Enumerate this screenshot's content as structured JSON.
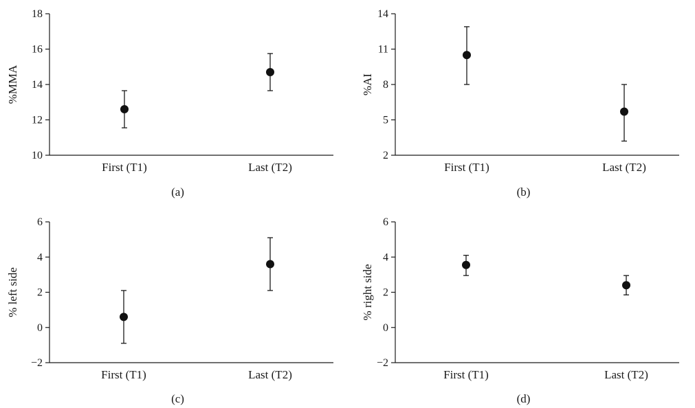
{
  "chart_data": [
    {
      "type": "scatter",
      "panel_label": "(a)",
      "ylabel": "%MMA",
      "xlabel": "",
      "categories": [
        "First (T1)",
        "Last (T2)"
      ],
      "yticks": [
        10,
        12,
        14,
        16,
        18
      ],
      "ylim": [
        10,
        18
      ],
      "series": [
        {
          "values": [
            12.6,
            14.7
          ],
          "err_low": [
            11.55,
            13.65
          ],
          "err_high": [
            13.65,
            15.75
          ]
        }
      ]
    },
    {
      "type": "scatter",
      "panel_label": "(b)",
      "ylabel": "%AI",
      "xlabel": "",
      "categories": [
        "First (T1)",
        "Last (T2)"
      ],
      "yticks": [
        2,
        5,
        8,
        11,
        14
      ],
      "ylim": [
        2,
        14
      ],
      "series": [
        {
          "values": [
            10.5,
            5.7
          ],
          "err_low": [
            8.0,
            3.2
          ],
          "err_high": [
            12.9,
            8.0
          ]
        }
      ]
    },
    {
      "type": "scatter",
      "panel_label": "(c)",
      "ylabel": "% left side",
      "xlabel": "",
      "categories": [
        "First (T1)",
        "Last (T2)"
      ],
      "yticks": [
        -2,
        0,
        2,
        4,
        6
      ],
      "ytick_labels": [
        "−2",
        "0",
        "2",
        "4",
        "6"
      ],
      "ylim": [
        -2,
        6
      ],
      "series": [
        {
          "values": [
            0.6,
            3.6
          ],
          "err_low": [
            -0.9,
            2.1
          ],
          "err_high": [
            2.1,
            5.1
          ]
        }
      ]
    },
    {
      "type": "scatter",
      "panel_label": "(d)",
      "ylabel": "% right side",
      "xlabel": "",
      "categories": [
        "First (T1)",
        "Last (T2)"
      ],
      "yticks": [
        -2,
        0,
        2,
        4,
        6
      ],
      "ytick_labels": [
        "−2",
        "0",
        "2",
        "4",
        "6"
      ],
      "ylim": [
        -2,
        6
      ],
      "series": [
        {
          "values": [
            3.55,
            2.4
          ],
          "err_low": [
            2.95,
            1.85
          ],
          "err_high": [
            4.1,
            2.95
          ]
        }
      ]
    }
  ]
}
